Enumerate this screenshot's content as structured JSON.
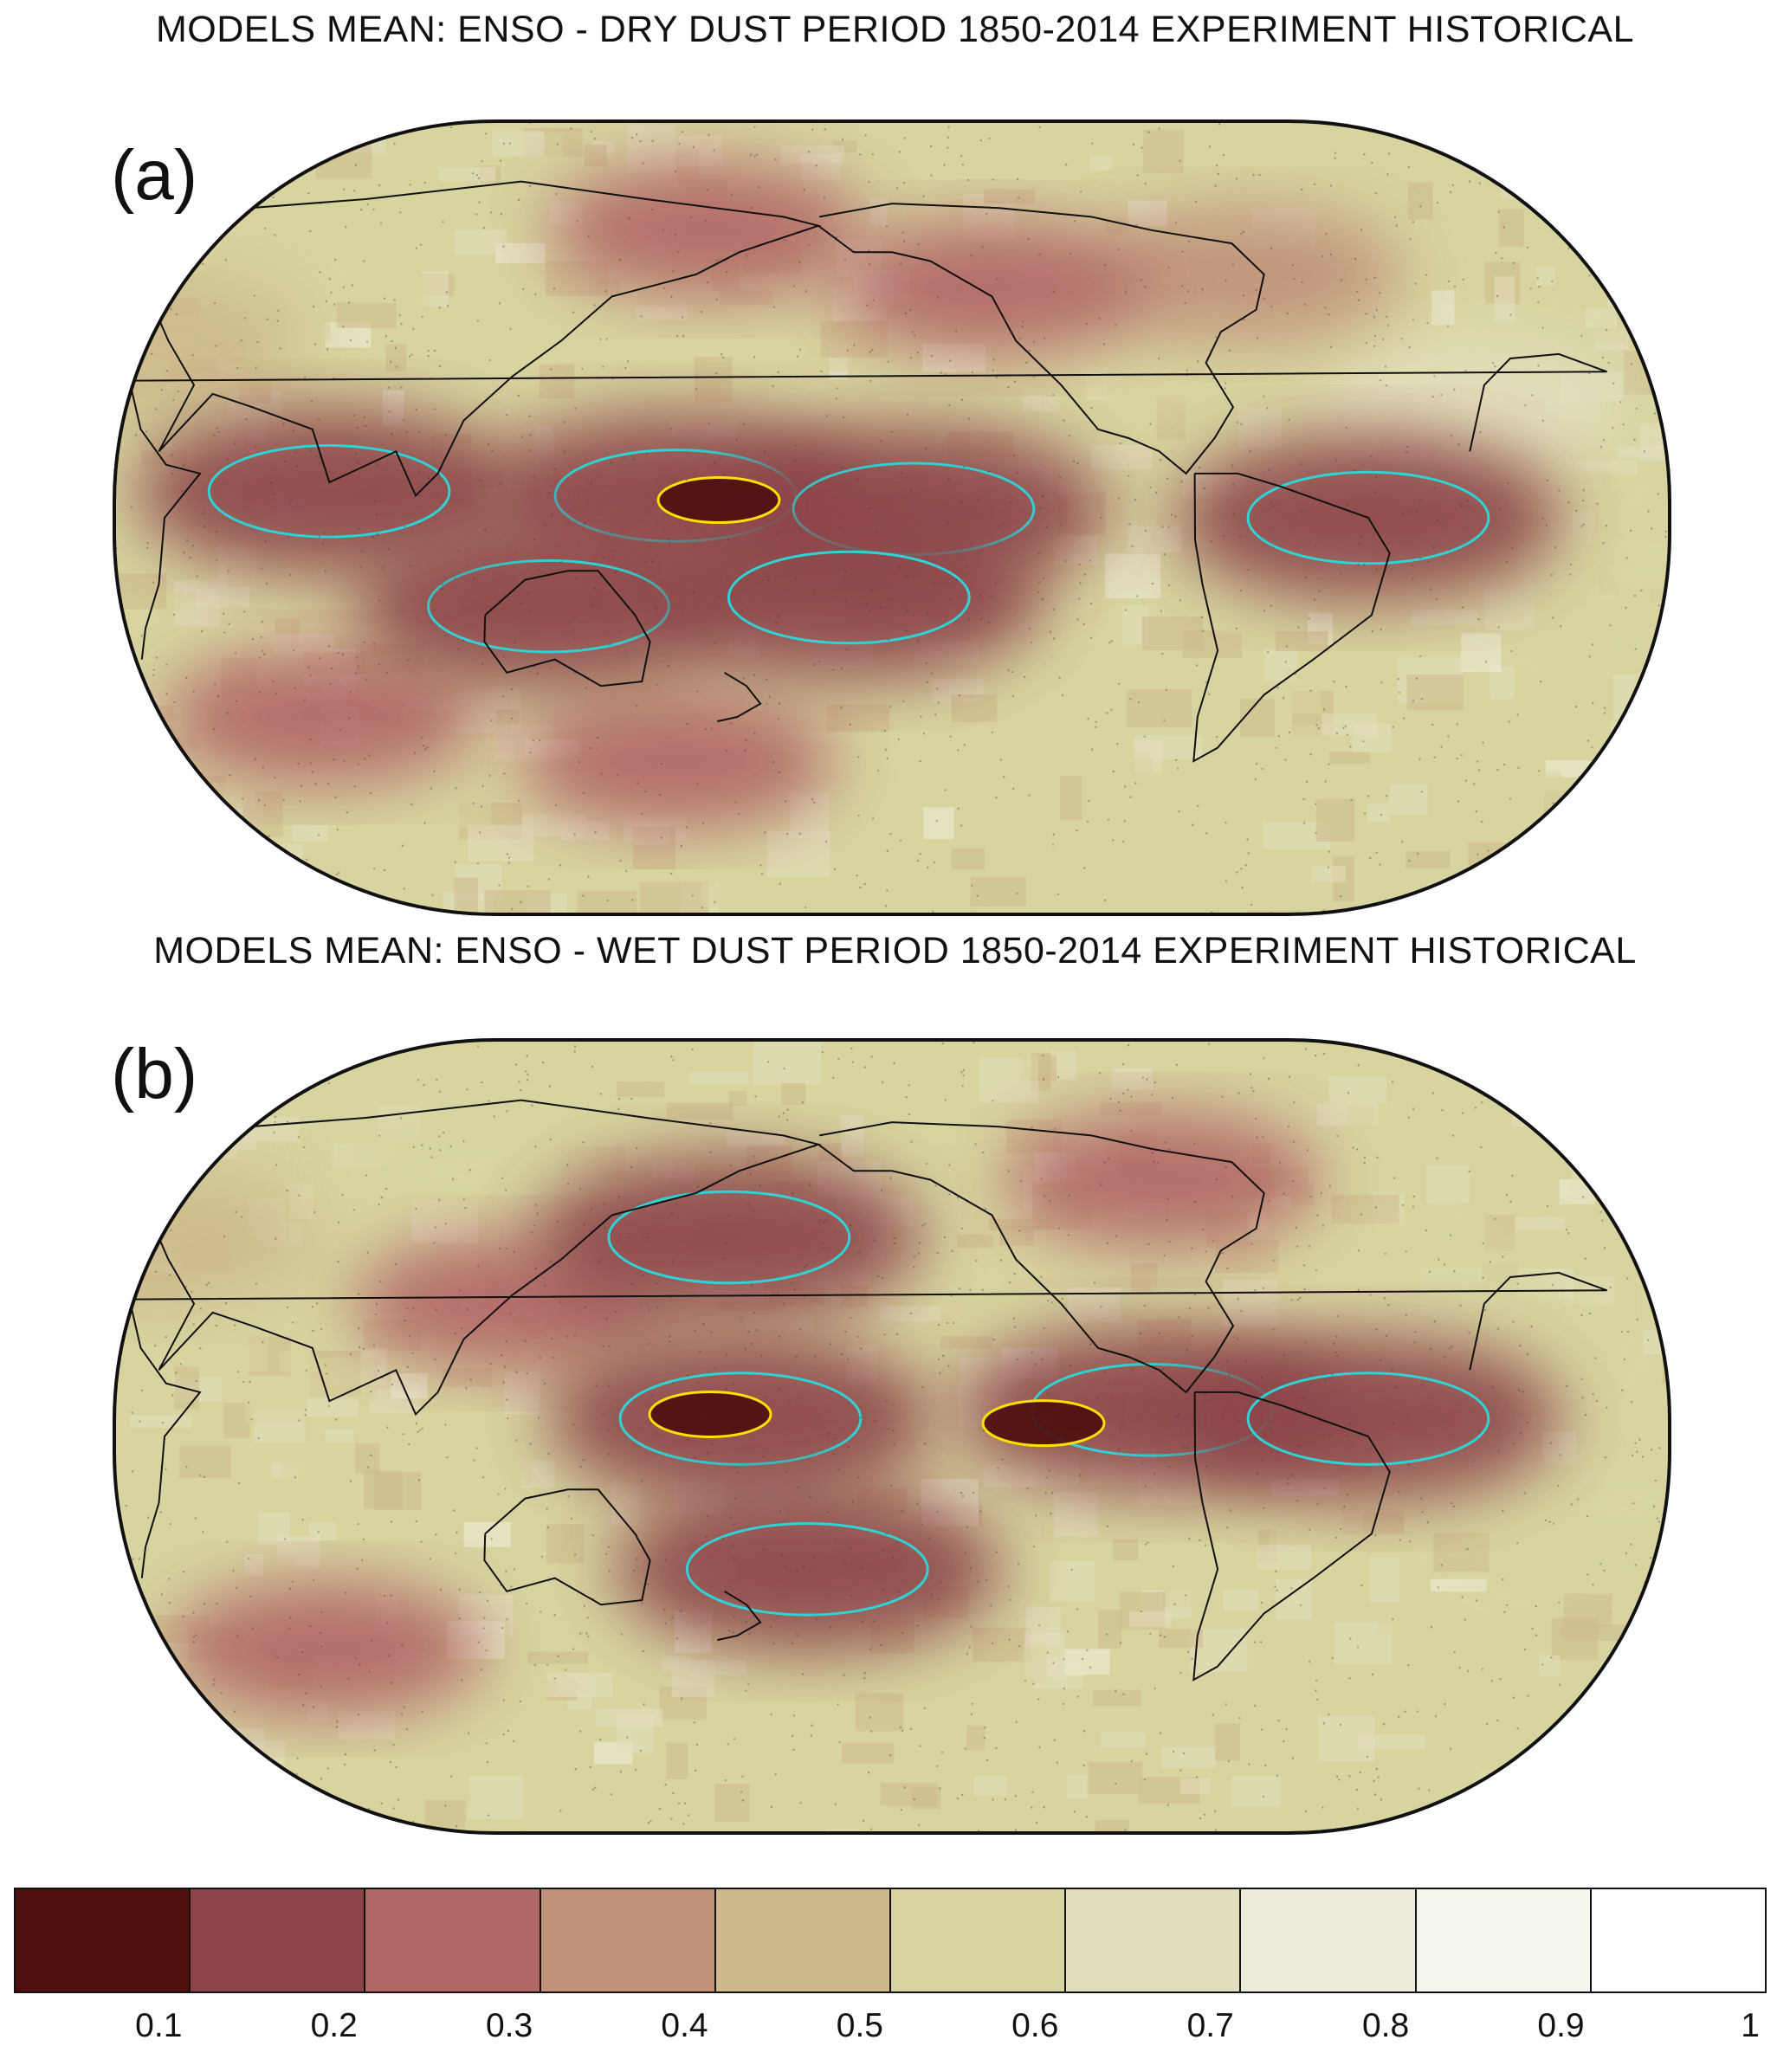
{
  "panels": [
    {
      "title": "MODELS MEAN: ENSO - DRY DUST PERIOD 1850-2014 EXPERIMENT HISTORICAL",
      "label": "(a)",
      "fields": [
        {
          "lon": 170,
          "lat": 4,
          "level": 0.1
        },
        {
          "lon": 160,
          "lat": 5,
          "level": 0.2
        },
        {
          "lon": 215,
          "lat": 2,
          "level": 0.2
        },
        {
          "lon": 130,
          "lat": -20,
          "level": 0.2
        },
        {
          "lon": 80,
          "lat": 6,
          "level": 0.2
        },
        {
          "lon": 320,
          "lat": 0,
          "level": 0.2
        },
        {
          "lon": 200,
          "lat": -18,
          "level": 0.2
        },
        {
          "lon": 235,
          "lat": 52,
          "level": 0.3
        },
        {
          "lon": 160,
          "lat": 65,
          "level": 0.3
        },
        {
          "lon": 70,
          "lat": -45,
          "level": 0.3
        },
        {
          "lon": 155,
          "lat": -55,
          "level": 0.3
        },
        {
          "lon": 300,
          "lat": 55,
          "level": 0.4
        },
        {
          "lon": 30,
          "lat": 40,
          "level": 0.5
        },
        {
          "lon": 280,
          "lat": 40,
          "level": 0.6
        },
        {
          "lon": 20,
          "lat": -10,
          "level": 0.6
        },
        {
          "lon": 345,
          "lat": 25,
          "level": 0.7
        }
      ]
    },
    {
      "title": "MODELS MEAN: ENSO - WET DUST PERIOD 1850-2014 EXPERIMENT HISTORICAL",
      "label": "(b)",
      "fields": [
        {
          "lon": 168,
          "lat": 5,
          "level": 0.1
        },
        {
          "lon": 245,
          "lat": 3,
          "level": 0.1
        },
        {
          "lon": 175,
          "lat": 4,
          "level": 0.2
        },
        {
          "lon": 270,
          "lat": 6,
          "level": 0.2
        },
        {
          "lon": 320,
          "lat": 4,
          "level": 0.2
        },
        {
          "lon": 190,
          "lat": -30,
          "level": 0.2
        },
        {
          "lon": 170,
          "lat": 45,
          "level": 0.2
        },
        {
          "lon": 120,
          "lat": 30,
          "level": 0.3
        },
        {
          "lon": 70,
          "lat": -48,
          "level": 0.3
        },
        {
          "lon": 280,
          "lat": 58,
          "level": 0.3
        },
        {
          "lon": 30,
          "lat": 45,
          "level": 0.5
        },
        {
          "lon": 340,
          "lat": 30,
          "level": 0.6
        },
        {
          "lon": 20,
          "lat": -15,
          "level": 0.6
        },
        {
          "lon": 100,
          "lat": 60,
          "level": 0.6
        }
      ]
    }
  ],
  "colorbar": {
    "colors": [
      "#4e0f0f",
      "#8c4448",
      "#b16666",
      "#c09279",
      "#cdb98c",
      "#d7d4a0",
      "#e3dfbe",
      "#eeecd8",
      "#f6f5ec",
      "#ffffff"
    ],
    "tick_labels": [
      "0.1",
      "0.2",
      "0.3",
      "0.4",
      "0.5",
      "0.6",
      "0.7",
      "0.8",
      "0.9",
      "1"
    ],
    "min": 0,
    "max": 1
  },
  "colors": {
    "contour_low": "#ffe000",
    "contour_high": "#2fd3d6",
    "coast": "#111111"
  }
}
